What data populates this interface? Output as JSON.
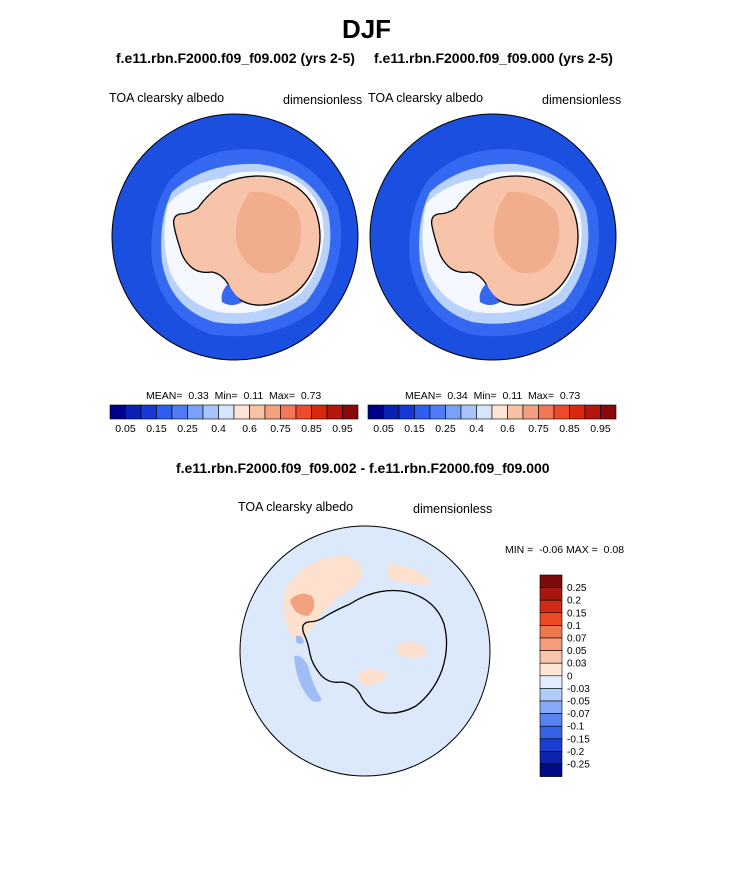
{
  "title": "DJF",
  "colors": {
    "ocean": "#1b4fe0",
    "ocean_edge": "#3568f0",
    "ice_light": "#b9d2fb",
    "ice_white": "#f5f8fe",
    "land": "#f7c3a9",
    "land_high": "#f2ad8e",
    "diff_bg": "#dbe9fb",
    "diff_pos": "#fde0cd",
    "diff_pos_strong": "#f3a27f",
    "diff_neg": "#9ebdf5",
    "coast": "#000000"
  },
  "panels": [
    {
      "case_title": "f.e11.rbn.F2000.f09_f09.002 (yrs 2-5)",
      "variable": "TOA clearsky albedo",
      "units": "dimensionless",
      "stats": {
        "mean_label": "MEAN=",
        "mean": "0.33",
        "min_label": "Min=",
        "min": "0.11",
        "max_label": "Max=",
        "max": "0.73"
      }
    },
    {
      "case_title": "f.e11.rbn.F2000.f09_f09.000 (yrs 2-5)",
      "variable": "TOA clearsky albedo",
      "units": "dimensionless",
      "stats": {
        "mean_label": "MEAN=",
        "mean": "0.34",
        "min_label": "Min=",
        "min": "0.11",
        "max_label": "Max=",
        "max": "0.73"
      }
    }
  ],
  "colorbar_top": {
    "colors": [
      "#00008a",
      "#0a1fb4",
      "#1638d6",
      "#2d5ef0",
      "#4f7cf6",
      "#7aa1f8",
      "#a8c4fa",
      "#d6e4fc",
      "#fbe3d5",
      "#f8c2a5",
      "#f59f7d",
      "#f37656",
      "#ee4b2c",
      "#d8290f",
      "#b5150c",
      "#8a0a0a"
    ],
    "tick_labels": [
      "0.05",
      "0.15",
      "0.25",
      "0.4",
      "0.6",
      "0.75",
      "0.85",
      "0.95"
    ]
  },
  "difference": {
    "title": "f.e11.rbn.F2000.f09_f09.002 - f.e11.rbn.F2000.f09_f09.000",
    "variable": "TOA clearsky albedo",
    "units": "dimensionless",
    "min_label": "MIN =",
    "min": "-0.06",
    "max_label": "MAX =",
    "max": "0.08",
    "colorbar": {
      "colors": [
        "#7a0c0c",
        "#a8170f",
        "#cf2a14",
        "#ec4a22",
        "#f0784d",
        "#f49c7b",
        "#f8c6ad",
        "#fde6d8",
        "#e3eefc",
        "#b3cdfa",
        "#86aaf6",
        "#5a82f0",
        "#3563e6",
        "#1a3fd0",
        "#0a24ad",
        "#000c85"
      ],
      "labels": [
        "0.25",
        "0.2",
        "0.15",
        "0.1",
        "0.07",
        "0.05",
        "0.03",
        "0",
        "-0.03",
        "-0.05",
        "-0.07",
        "-0.1",
        "-0.15",
        "-0.2",
        "-0.25"
      ]
    }
  }
}
